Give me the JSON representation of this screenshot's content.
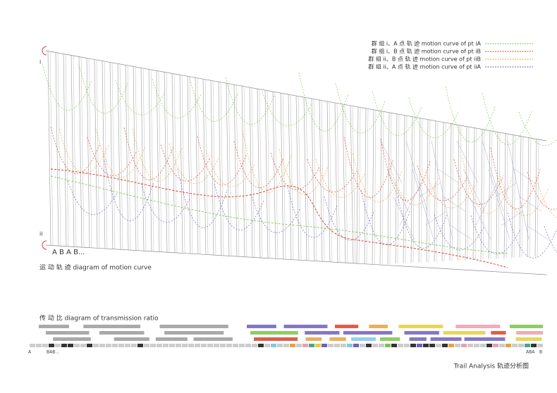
{
  "legend": [
    {
      "label": "群 组 i、A 点 轨 迹   motion curve of pt iA",
      "color": "#7cc34c"
    },
    {
      "label": "群 组 i、B 点 轨 迹   motion curve of pt iB",
      "color": "#d8432c"
    },
    {
      "label": "群 组 ii、B 点 轨 迹   motion curve of pt iiB",
      "color": "#e8a040"
    },
    {
      "label": "群 组 ii、A 点 轨 迹   motion curve of pt iiA",
      "color": "#7060b8"
    }
  ],
  "labels": {
    "group_i": "i",
    "group_ii": "ii",
    "sequence": "A B A B...",
    "motion_title": "运 动 轨 迹    diagram of motion curve",
    "ratio_title": "传 动 比    diagram of transmission ratio",
    "axis_start_a": "A",
    "axis_start_bab": "BAB...",
    "axis_end_aba": "ABA",
    "axis_end_b": "B"
  },
  "footer": "Trail Analysis  轨迹分析图"
}
